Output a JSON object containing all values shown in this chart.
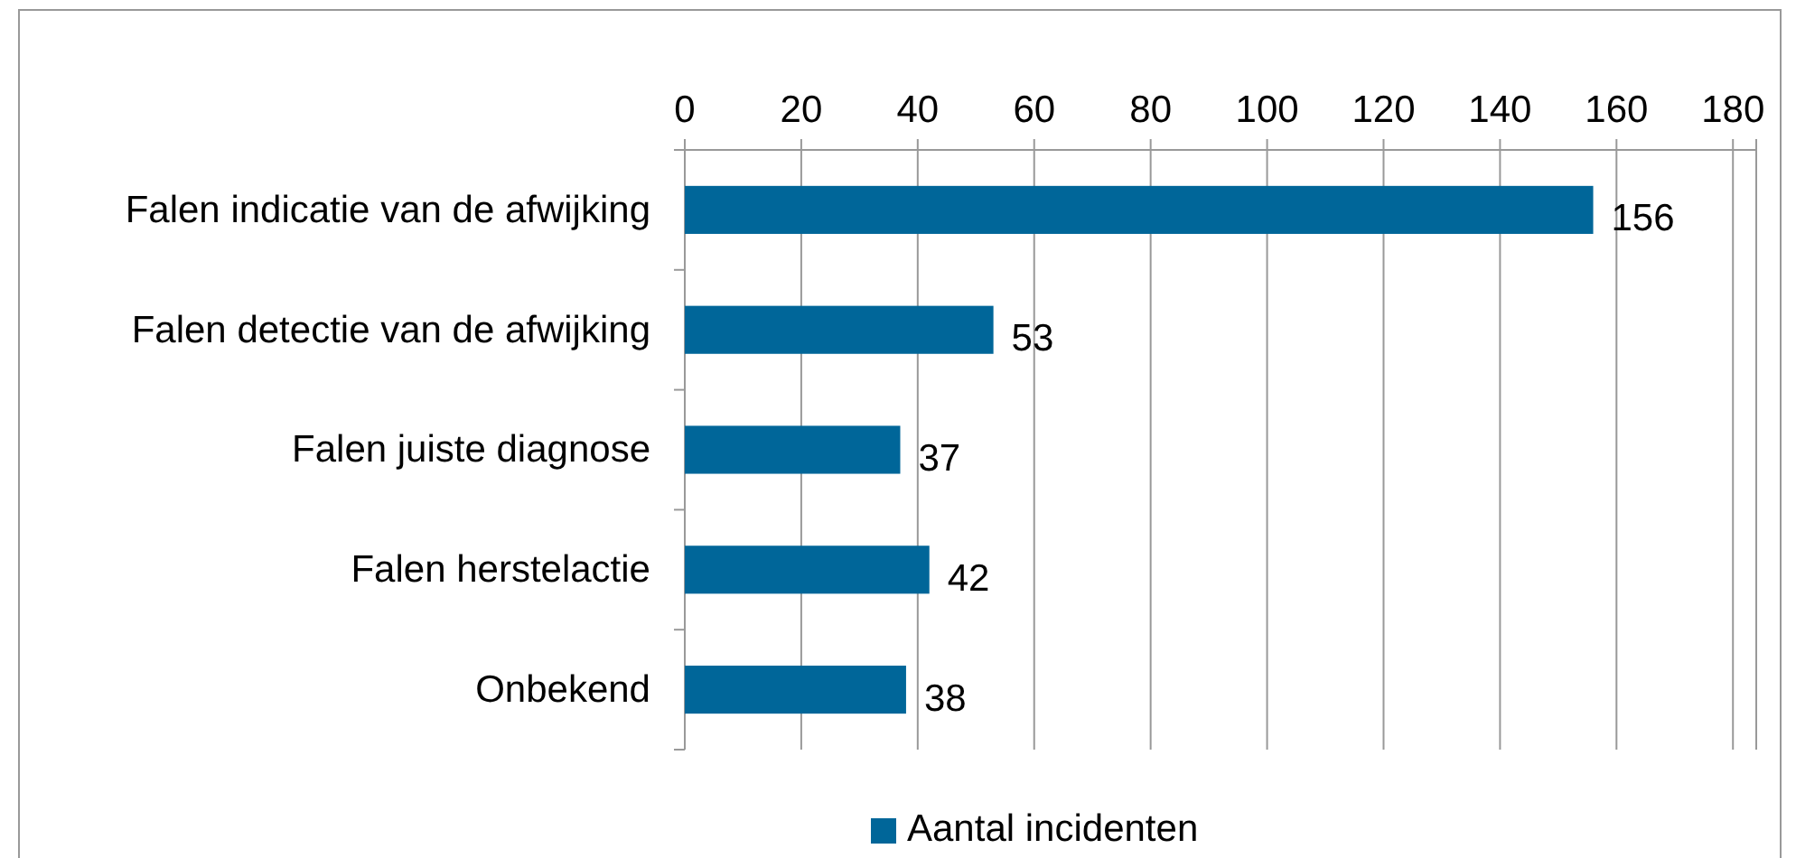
{
  "chart_data": {
    "type": "bar",
    "orientation": "horizontal",
    "categories": [
      "Falen indicatie van de afwijking",
      "Falen detectie van de afwijking",
      "Falen juiste diagnose",
      "Falen herstelactie",
      "Onbekend"
    ],
    "series": [
      {
        "name": "Aantal incidenten",
        "color": "#006699",
        "values": [
          156,
          53,
          37,
          42,
          38
        ]
      }
    ],
    "xlim": [
      0,
      184
    ],
    "xticks": [
      0,
      20,
      40,
      60,
      80,
      100,
      120,
      140,
      160,
      180
    ],
    "grid": "x",
    "data_labels": true,
    "legend": "bottom"
  }
}
